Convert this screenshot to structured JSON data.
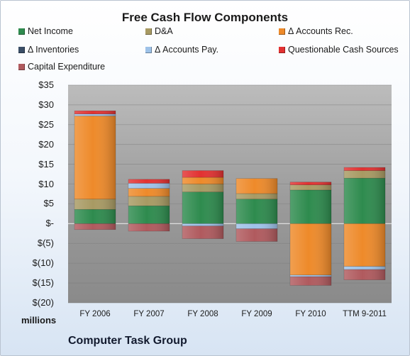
{
  "chart_data": {
    "type": "bar",
    "stacked": true,
    "title": "Free Cash Flow Components",
    "units_label": "millions",
    "company": "Computer Task Group",
    "categories": [
      "FY 2006",
      "FY 2007",
      "FY 2008",
      "FY 2009",
      "FY 2010",
      "TTM 9-2011"
    ],
    "ylim": [
      -20,
      35
    ],
    "yticks": [
      35,
      30,
      25,
      20,
      15,
      10,
      5,
      0,
      -5,
      -10,
      -15,
      -20
    ],
    "ytick_labels": [
      "$35",
      "$30",
      "$25",
      "$20",
      "$15",
      "$10",
      "$5",
      "$-",
      "$(5)",
      "$(10)",
      "$(15)",
      "$(20)"
    ],
    "grid": true,
    "legend_placement": "top",
    "series": [
      {
        "name": "Net Income",
        "color": "#2e8b4e",
        "values": [
          3.6,
          4.5,
          8.0,
          6.2,
          8.5,
          11.5
        ]
      },
      {
        "name": "D&A",
        "color": "#a89a63",
        "values": [
          2.6,
          2.4,
          2.0,
          1.4,
          1.3,
          1.9
        ]
      },
      {
        "name": "Δ Accounts Rec.",
        "color": "#ee8a2a",
        "values": [
          21.0,
          2.0,
          1.7,
          3.8,
          -13.0,
          -10.8
        ]
      },
      {
        "name": "Δ Inventories",
        "color": "#3a4e66",
        "values": [
          0,
          0,
          0,
          0,
          0,
          0
        ]
      },
      {
        "name": "Δ Accounts Pay.",
        "color": "#9ec2e8",
        "values": [
          0.5,
          1.3,
          -0.6,
          -1.3,
          -0.4,
          -0.8
        ]
      },
      {
        "name": "Questionable Cash Sources",
        "color": "#e23131",
        "values": [
          0.8,
          1.0,
          1.7,
          0,
          0.7,
          0.8
        ]
      },
      {
        "name": "Capital Expenditure",
        "color": "#b05a5e",
        "values": [
          -1.5,
          -1.9,
          -3.2,
          -3.2,
          -2.2,
          -2.6
        ]
      }
    ]
  }
}
